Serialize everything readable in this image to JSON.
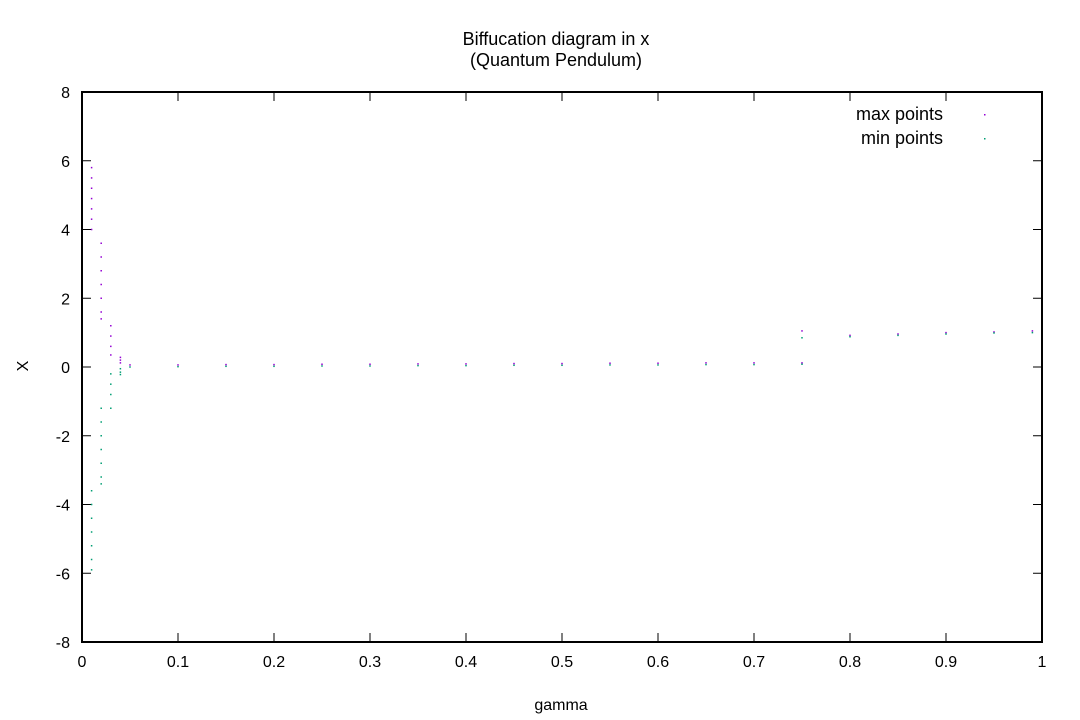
{
  "chart_data": {
    "type": "scatter",
    "title": "Biffucation diagram in x",
    "subtitle": "(Quantum Pendulum)",
    "xlabel": "gamma",
    "ylabel": "X",
    "xlim": [
      0,
      1
    ],
    "ylim": [
      -8,
      8
    ],
    "x_ticks": [
      {
        "value": 0,
        "label": "0"
      },
      {
        "value": 0.1,
        "label": "0.1"
      },
      {
        "value": 0.2,
        "label": "0.2"
      },
      {
        "value": 0.3,
        "label": "0.3"
      },
      {
        "value": 0.4,
        "label": "0.4"
      },
      {
        "value": 0.5,
        "label": "0.5"
      },
      {
        "value": 0.6,
        "label": "0.6"
      },
      {
        "value": 0.7,
        "label": "0.7"
      },
      {
        "value": 0.8,
        "label": "0.8"
      },
      {
        "value": 0.9,
        "label": "0.9"
      },
      {
        "value": 1,
        "label": "1"
      }
    ],
    "y_ticks": [
      {
        "value": -8,
        "label": "-8"
      },
      {
        "value": -6,
        "label": "-6"
      },
      {
        "value": -4,
        "label": "-4"
      },
      {
        "value": -2,
        "label": "-2"
      },
      {
        "value": 0,
        "label": "0"
      },
      {
        "value": 2,
        "label": "2"
      },
      {
        "value": 4,
        "label": "4"
      },
      {
        "value": 6,
        "label": "6"
      },
      {
        "value": 8,
        "label": "8"
      }
    ],
    "grid": false,
    "legend_position": "top-right",
    "series": [
      {
        "name": "max points",
        "color": "#9400d3",
        "points": [
          {
            "x": 0.01,
            "y": 5.8
          },
          {
            "x": 0.01,
            "y": 5.5
          },
          {
            "x": 0.01,
            "y": 5.2
          },
          {
            "x": 0.01,
            "y": 4.9
          },
          {
            "x": 0.01,
            "y": 4.6
          },
          {
            "x": 0.01,
            "y": 4.3
          },
          {
            "x": 0.01,
            "y": 4.0
          },
          {
            "x": 0.02,
            "y": 3.6
          },
          {
            "x": 0.02,
            "y": 3.2
          },
          {
            "x": 0.02,
            "y": 2.8
          },
          {
            "x": 0.02,
            "y": 2.4
          },
          {
            "x": 0.02,
            "y": 2.0
          },
          {
            "x": 0.02,
            "y": 1.6
          },
          {
            "x": 0.02,
            "y": 1.4
          },
          {
            "x": 0.03,
            "y": 1.2
          },
          {
            "x": 0.03,
            "y": 0.9
          },
          {
            "x": 0.03,
            "y": 0.6
          },
          {
            "x": 0.03,
            "y": 0.35
          },
          {
            "x": 0.04,
            "y": 0.28
          },
          {
            "x": 0.04,
            "y": 0.2
          },
          {
            "x": 0.04,
            "y": 0.12
          },
          {
            "x": 0.05,
            "y": 0.06
          },
          {
            "x": 0.1,
            "y": 0.06
          },
          {
            "x": 0.15,
            "y": 0.07
          },
          {
            "x": 0.2,
            "y": 0.07
          },
          {
            "x": 0.25,
            "y": 0.08
          },
          {
            "x": 0.3,
            "y": 0.08
          },
          {
            "x": 0.35,
            "y": 0.09
          },
          {
            "x": 0.4,
            "y": 0.09
          },
          {
            "x": 0.45,
            "y": 0.1
          },
          {
            "x": 0.5,
            "y": 0.1
          },
          {
            "x": 0.55,
            "y": 0.11
          },
          {
            "x": 0.6,
            "y": 0.11
          },
          {
            "x": 0.65,
            "y": 0.12
          },
          {
            "x": 0.7,
            "y": 0.12
          },
          {
            "x": 0.75,
            "y": 0.12
          },
          {
            "x": 0.75,
            "y": 1.05
          },
          {
            "x": 0.8,
            "y": 0.92
          },
          {
            "x": 0.85,
            "y": 0.96
          },
          {
            "x": 0.9,
            "y": 1.0
          },
          {
            "x": 0.95,
            "y": 1.02
          },
          {
            "x": 0.99,
            "y": 1.05
          }
        ]
      },
      {
        "name": "min points",
        "color": "#009e73",
        "points": [
          {
            "x": 0.01,
            "y": -3.6
          },
          {
            "x": 0.01,
            "y": -4.0
          },
          {
            "x": 0.01,
            "y": -4.4
          },
          {
            "x": 0.01,
            "y": -4.8
          },
          {
            "x": 0.01,
            "y": -5.2
          },
          {
            "x": 0.01,
            "y": -5.6
          },
          {
            "x": 0.01,
            "y": -5.9
          },
          {
            "x": 0.02,
            "y": -1.2
          },
          {
            "x": 0.02,
            "y": -1.6
          },
          {
            "x": 0.02,
            "y": -2.0
          },
          {
            "x": 0.02,
            "y": -2.4
          },
          {
            "x": 0.02,
            "y": -2.8
          },
          {
            "x": 0.02,
            "y": -3.2
          },
          {
            "x": 0.02,
            "y": -3.4
          },
          {
            "x": 0.03,
            "y": -0.2
          },
          {
            "x": 0.03,
            "y": -0.5
          },
          {
            "x": 0.03,
            "y": -0.8
          },
          {
            "x": 0.03,
            "y": -1.2
          },
          {
            "x": 0.04,
            "y": -0.05
          },
          {
            "x": 0.04,
            "y": -0.15
          },
          {
            "x": 0.04,
            "y": -0.22
          },
          {
            "x": 0.05,
            "y": 0.0
          },
          {
            "x": 0.1,
            "y": 0.01
          },
          {
            "x": 0.15,
            "y": 0.02
          },
          {
            "x": 0.2,
            "y": 0.02
          },
          {
            "x": 0.25,
            "y": 0.03
          },
          {
            "x": 0.3,
            "y": 0.03
          },
          {
            "x": 0.35,
            "y": 0.04
          },
          {
            "x": 0.4,
            "y": 0.04
          },
          {
            "x": 0.45,
            "y": 0.05
          },
          {
            "x": 0.5,
            "y": 0.05
          },
          {
            "x": 0.55,
            "y": 0.06
          },
          {
            "x": 0.6,
            "y": 0.06
          },
          {
            "x": 0.65,
            "y": 0.07
          },
          {
            "x": 0.7,
            "y": 0.07
          },
          {
            "x": 0.75,
            "y": 0.08
          },
          {
            "x": 0.75,
            "y": 0.85
          },
          {
            "x": 0.8,
            "y": 0.88
          },
          {
            "x": 0.85,
            "y": 0.92
          },
          {
            "x": 0.9,
            "y": 0.96
          },
          {
            "x": 0.95,
            "y": 0.99
          },
          {
            "x": 0.99,
            "y": 1.0
          }
        ]
      }
    ]
  }
}
